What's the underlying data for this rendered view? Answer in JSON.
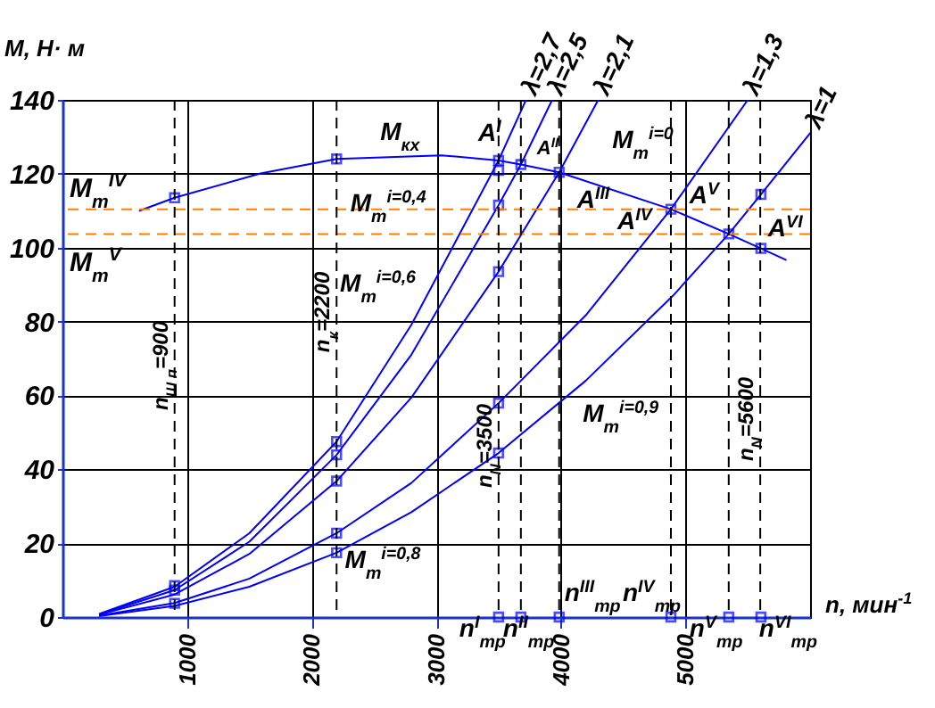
{
  "chart_data": {
    "type": "line",
    "xlabel": "n, мин$^{-1}$",
    "ylabel": "M, Н· м",
    "xlim": [
      0,
      6000
    ],
    "xticks": [
      1000,
      2000,
      3000,
      4000,
      5000
    ],
    "ylim": [
      0,
      140
    ],
    "yticks": [
      0,
      20,
      40,
      60,
      80,
      100,
      120,
      140
    ],
    "grid": true,
    "line_style": "solid",
    "marker": "none",
    "series": [
      {
        "color": "#0000ff",
        "x": [
          620,
          900,
          1590,
          2200,
          3040,
          3500,
          3679,
          3986,
          4883,
          5347,
          5605,
          5805
        ],
        "values": [
          110,
          113.5,
          120.1,
          124,
          125,
          123.6,
          122.5,
          120.4,
          110.4,
          103.7,
          99.8,
          96.7
        ]
      },
      {
        "name": "λ=2,7",
        "color": "#0000ff",
        "x": [
          300,
          900,
          1500,
          2200,
          2800,
          3500,
          3720
        ],
        "values": [
          0.9,
          8.2,
          22.7,
          47.5,
          79.1,
          123.6,
          140
        ]
      },
      {
        "name": "λ=2,5",
        "color": "#0000ff",
        "x": [
          300,
          900,
          1500,
          2200,
          2800,
          3500,
          3679,
          3930
        ],
        "values": [
          0.8,
          7.3,
          20.4,
          43.9,
          71,
          111.5,
          122.5,
          140
        ]
      },
      {
        "name": "λ=2,1",
        "color": "#0000ff",
        "x": [
          300,
          900,
          1500,
          2200,
          2800,
          3500,
          3986,
          4300
        ],
        "values": [
          0.7,
          6.1,
          17.1,
          36.8,
          59.4,
          93.5,
          120.4,
          140
        ]
      },
      {
        "name": "λ=1,3",
        "color": "#0000ff",
        "x": [
          300,
          900,
          1500,
          2200,
          2800,
          3500,
          4200,
          4883,
          5500
        ],
        "values": [
          0.4,
          3.8,
          10.4,
          22.7,
          36.3,
          57.9,
          81.7,
          110.4,
          140
        ]
      },
      {
        "name": "λ=1",
        "color": "#0000ff",
        "x": [
          300,
          900,
          1500,
          2200,
          2800,
          3500,
          4200,
          4900,
          5347,
          5605,
          6000
        ],
        "values": [
          0.3,
          3.0,
          8.2,
          17.4,
          28.4,
          44.4,
          64,
          87,
          103.7,
          114.4,
          131
        ]
      },
      {
        "type": "scatter",
        "marker": "square",
        "color": "#0000ff",
        "x": [
          900,
          900,
          900,
          900,
          2200,
          2200,
          2200,
          2200,
          2200,
          2200,
          3500,
          3500,
          3500,
          3500,
          3500,
          3500,
          3500,
          3679,
          3679,
          3986,
          3986,
          4883,
          4883,
          5347,
          5347,
          5605,
          5605,
          5605
        ],
        "values": [
          113.5,
          8.5,
          7.3,
          3.7,
          124,
          47.5,
          43.9,
          36.8,
          22.7,
          17.4,
          123.6,
          120.9,
          111.5,
          93.5,
          57.9,
          44.4,
          0,
          122.5,
          0,
          120.4,
          0,
          110.4,
          0,
          103.7,
          0,
          114.4,
          99.8,
          0
        ]
      }
    ],
    "ref_lines": [
      {
        "axis": "y",
        "value": 110.4,
        "label": "M$_{т}$$^{IV}$",
        "color": "#ff8000",
        "line_style": "dashed"
      },
      {
        "axis": "y",
        "value": 103.7,
        "label": "M$_{т}$$^{V}$",
        "color": "#ff8000",
        "line_style": "dashed"
      },
      {
        "axis": "x",
        "value": 900,
        "label": "n$_{Ш п}$=900",
        "line_style": "dashed"
      },
      {
        "axis": "x",
        "value": 2200,
        "label": "n$_{к}$=2200",
        "line_style": "dashed"
      },
      {
        "axis": "x",
        "value": 3500,
        "label": "n$_{N}$=3500",
        "line_style": "dashed"
      },
      {
        "axis": "x",
        "value": 5600,
        "label": "n$_{N}$=5600",
        "line_style": "dashed"
      },
      {
        "axis": "x",
        "value": 3679,
        "line_style": "dashed"
      },
      {
        "axis": "x",
        "value": 3986,
        "line_style": "dashed"
      },
      {
        "axis": "x",
        "value": 4883,
        "line_style": "dashed"
      },
      {
        "axis": "x",
        "value": 5347,
        "line_style": "dashed"
      }
    ],
    "annotations": [
      {
        "text": "M$_{кх}$",
        "x": 2550,
        "y": 124.7
      },
      {
        "text": "A$^{I}$",
        "x": 3500,
        "y": 123.6
      },
      {
        "text": "A$^{II}$",
        "x": 3679,
        "y": 122.5
      },
      {
        "text": "A$^{III}$",
        "x": 3986,
        "y": 120.4
      },
      {
        "text": "A$^{IV}$",
        "x": 4883,
        "y": 110.4
      },
      {
        "text": "A$^{V}$",
        "x": 5347,
        "y": 103.7
      },
      {
        "text": "A$^{VI}$",
        "x": 5605,
        "y": 99.8
      },
      {
        "text": "M$_{т}$$^{i=0}$",
        "x": 4240,
        "y": 136.2
      },
      {
        "text": "M$_{т}$$^{i=0,4}$",
        "x": 3112,
        "y": 97.7
      },
      {
        "text": "M$_{т}$$^{i=0,6}$",
        "x": 2800,
        "y": 75
      },
      {
        "text": "M$_{т}$$^{i=0,8}$",
        "x": 2324,
        "y": 25.3
      },
      {
        "text": "M$_{т}$$^{i=0,9}$",
        "x": 4262,
        "y": 65.8
      },
      {
        "text": "n$^{I}$$_{тр}$",
        "x": 3500,
        "y": 0
      },
      {
        "text": "n$^{II}$$_{тр}$",
        "x": 3679,
        "y": 0
      },
      {
        "text": "n$^{III}$$_{тр}$",
        "x": 3986,
        "y": 0
      },
      {
        "text": "n$^{IV}$$_{тр}$",
        "x": 4883,
        "y": 0
      },
      {
        "text": "n$^{V}$$_{тр}$",
        "x": 5347,
        "y": 0
      },
      {
        "text": "n$^{VI}$$_{тр}$",
        "x": 5605,
        "y": 0
      }
    ]
  }
}
